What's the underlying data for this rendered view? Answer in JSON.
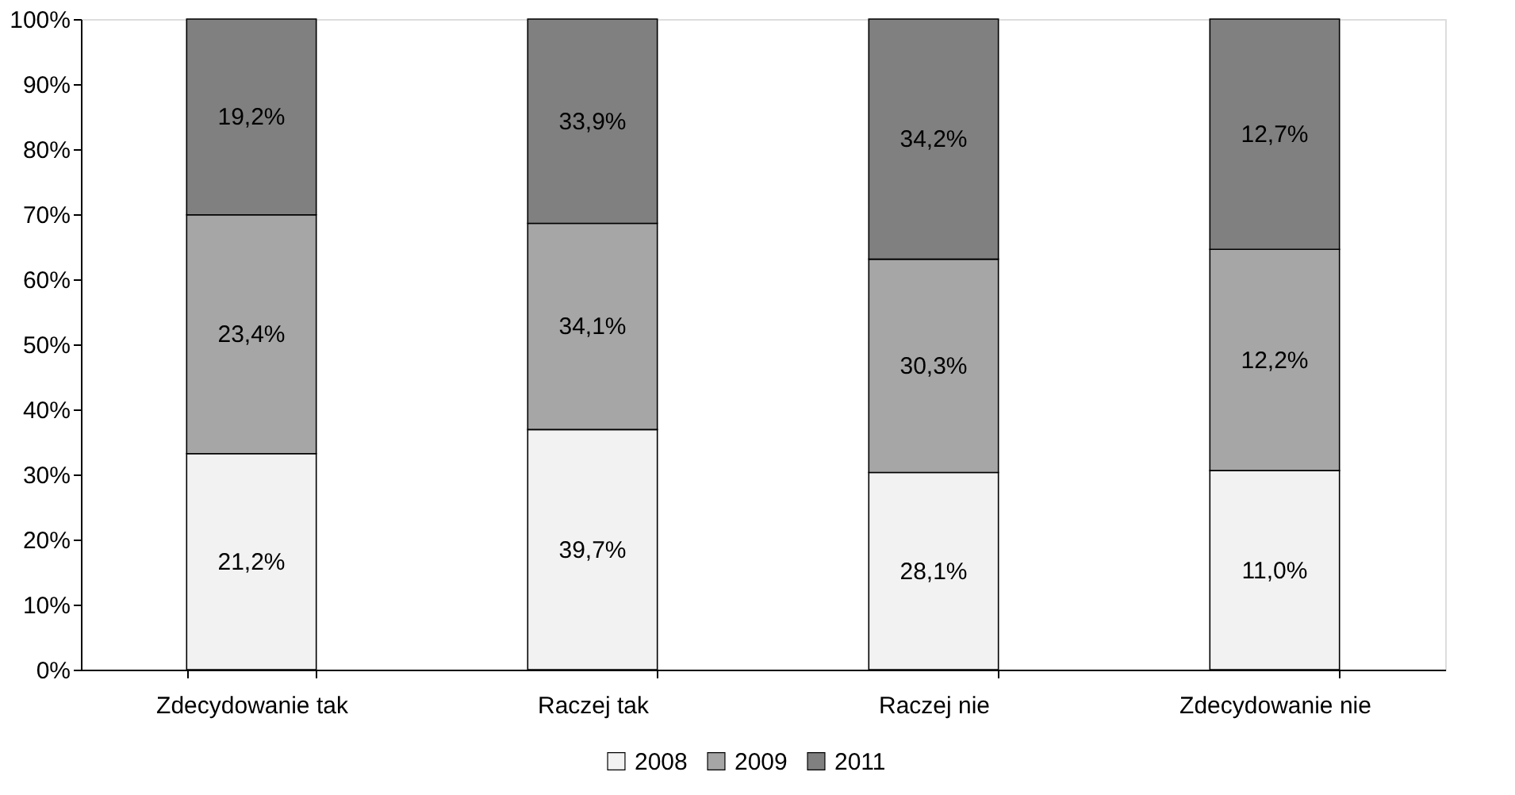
{
  "chart_data": {
    "type": "bar",
    "stacked": true,
    "categories": [
      "Zdecydowanie tak",
      "Raczej tak",
      "Raczej nie",
      "Zdecydowanie nie"
    ],
    "series": [
      {
        "name": "2008",
        "color": "#f2f2f2",
        "values": [
          33.2,
          36.9,
          30.3,
          30.6
        ]
      },
      {
        "name": "2009",
        "color": "#a6a6a6",
        "values": [
          36.7,
          31.7,
          32.8,
          34.0
        ]
      },
      {
        "name": "2011",
        "color": "#808080",
        "values": [
          30.1,
          31.4,
          36.9,
          35.4
        ]
      }
    ],
    "annotations": [
      "21,2%",
      "39,7%",
      "28,1%",
      "11,0%",
      "23,4%",
      "34,1%",
      "30,3%",
      "12,2%",
      "19,2%",
      "33,9%",
      "34,2%",
      "12,7%"
    ],
    "ylim": [
      0,
      100
    ],
    "yticks": [
      {
        "value": 0,
        "label": "0%"
      },
      {
        "value": 10,
        "label": "10%"
      },
      {
        "value": 20,
        "label": "20%"
      },
      {
        "value": 30,
        "label": "30%"
      },
      {
        "value": 40,
        "label": "40%"
      },
      {
        "value": 50,
        "label": "50%"
      },
      {
        "value": 60,
        "label": "60%"
      },
      {
        "value": 70,
        "label": "70%"
      },
      {
        "value": 80,
        "label": "80%"
      },
      {
        "value": 90,
        "label": "90%"
      },
      {
        "value": 100,
        "label": "100%"
      }
    ],
    "grid": false,
    "legend": "bottom"
  }
}
